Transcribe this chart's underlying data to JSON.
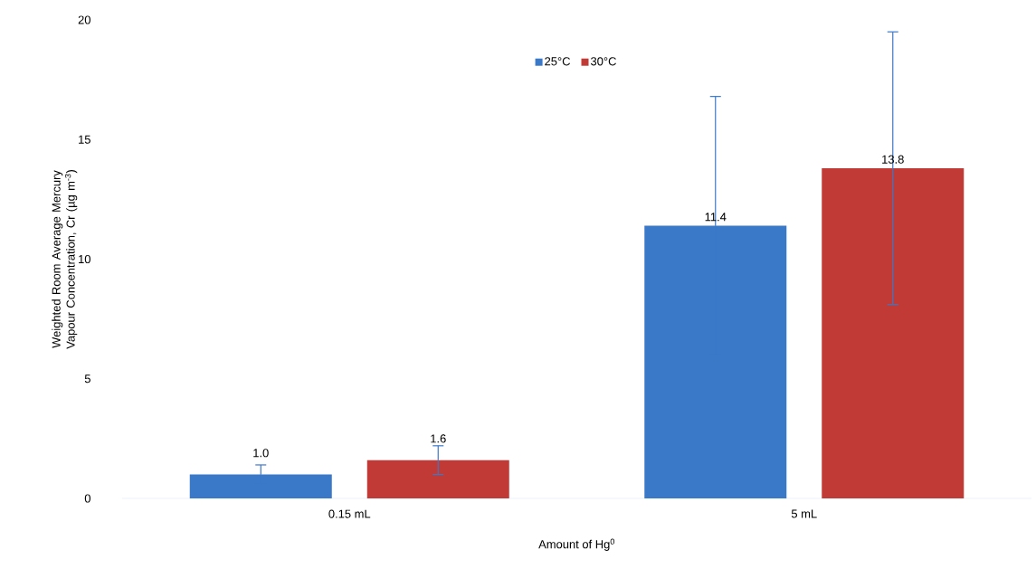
{
  "chart_data": {
    "type": "bar",
    "xlabel": "Amount of Hg$^{0}$",
    "ylabel": "Weighted Room Average Mercury Vapour Concentration, Cr (µg m$^{-3}$)",
    "categories": [
      "0.15 mL",
      "5 mL"
    ],
    "series": [
      {
        "name": "25°C",
        "color": "#3a78c8",
        "values": [
          1.0,
          11.4
        ],
        "errors": [
          0.4,
          5.4
        ],
        "value_labels": [
          "1.0",
          "11.4"
        ]
      },
      {
        "name": "30°C",
        "color": "#c23a36",
        "values": [
          1.6,
          13.8
        ],
        "errors": [
          0.6,
          5.7
        ],
        "value_labels": [
          "1.6",
          "13.8"
        ]
      }
    ],
    "ylim": [
      0,
      20
    ],
    "yticks": [
      0,
      5,
      10,
      15,
      20
    ],
    "grid": false,
    "legend": "top"
  }
}
